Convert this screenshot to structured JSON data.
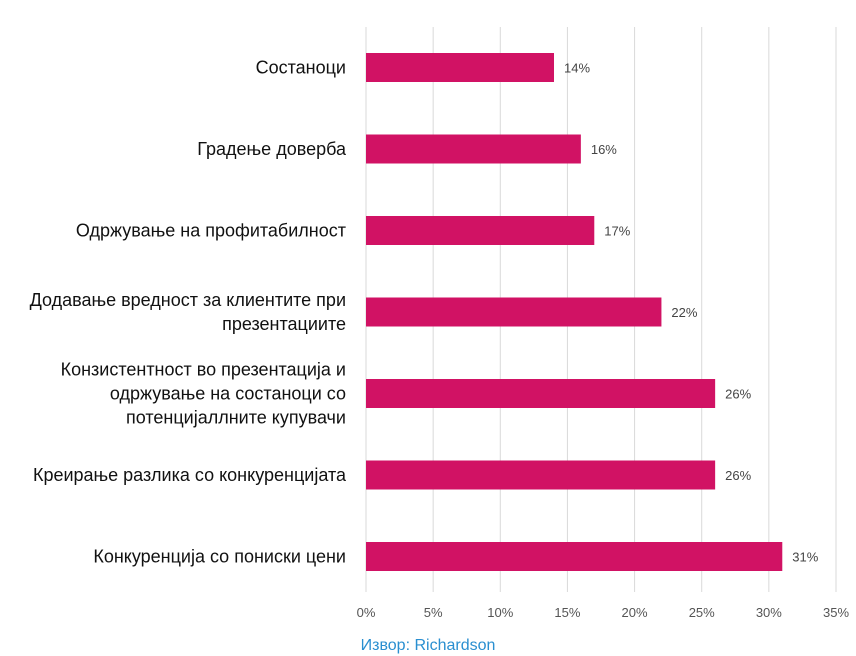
{
  "chart_data": {
    "type": "bar",
    "orientation": "horizontal",
    "categories": [
      [
        "Состаноци"
      ],
      [
        "Градење доверба"
      ],
      [
        "Одржување на профитабилност"
      ],
      [
        "Додавање вредност за клиентите при",
        "презентациите"
      ],
      [
        "Конзистентност во презентација и",
        "одржување на состаноци со",
        "потенцијаллните купувачи"
      ],
      [
        "Креирање разлика со конкуренцијата"
      ],
      [
        "Конкуренција со пониски цени"
      ]
    ],
    "values": [
      14,
      16,
      17,
      22,
      26,
      26,
      31
    ],
    "data_labels": [
      "14%",
      "16%",
      "17%",
      "22%",
      "26%",
      "26%",
      "31%"
    ],
    "xlim": [
      0,
      35
    ],
    "x_ticks": [
      0,
      5,
      10,
      15,
      20,
      25,
      30,
      35
    ],
    "x_tick_labels": [
      "0%",
      "5%",
      "10%",
      "15%",
      "20%",
      "25%",
      "30%",
      "35%"
    ],
    "grid": true,
    "bar_color": "#d11264",
    "grid_color": "#d9d9d9"
  },
  "source": {
    "text": "Извор: Richardson",
    "color": "#2a8fd0"
  }
}
